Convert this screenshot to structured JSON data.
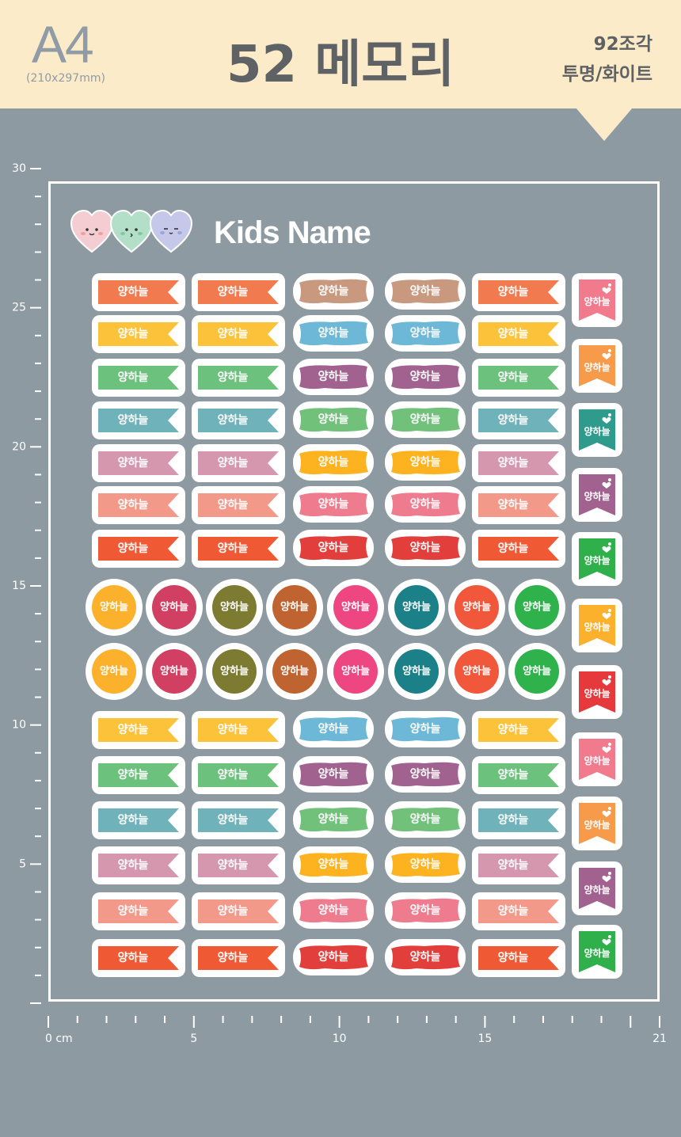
{
  "header": {
    "size_name": "A4",
    "size_dims": "(210x297mm)",
    "title": "52 메모리",
    "piece_count": "92조각",
    "material": "투명/화이트"
  },
  "sheet": {
    "heading": "Kids Name",
    "name_text": "양하늘",
    "colors": {
      "orange": "#f27a4f",
      "yellow": "#fbc23a",
      "green": "#6cc17d",
      "teal": "#6fb2b9",
      "pink": "#d597ad",
      "salmon": "#f2998a",
      "red": "#ef5a35",
      "tan": "#c9997f",
      "sky": "#6cb8d6",
      "plum": "#a2628f",
      "leaf": "#72c17a",
      "gold": "#fdb220",
      "rose": "#ef7b8e",
      "crimson": "#e23e3b"
    },
    "circle_colors": [
      "#fbb12b",
      "#d13f62",
      "#7d7a32",
      "#bf6431",
      "#ee4680",
      "#1c8088",
      "#f1573a",
      "#2fb24c"
    ],
    "flag_colors": [
      "#f27a8d",
      "#f79a4a",
      "#2e9b8d",
      "#a2628f",
      "#2fb04b",
      "#fbb12b",
      "#e5393c",
      "#f27a8d",
      "#f79a4a",
      "#a2628f",
      "#2fb04b"
    ]
  },
  "ruler": {
    "left_labels": [
      "30",
      "25",
      "20",
      "15",
      "10",
      "5"
    ],
    "bottom_labels": [
      "0 cm",
      "5",
      "10",
      "15",
      "21"
    ]
  }
}
